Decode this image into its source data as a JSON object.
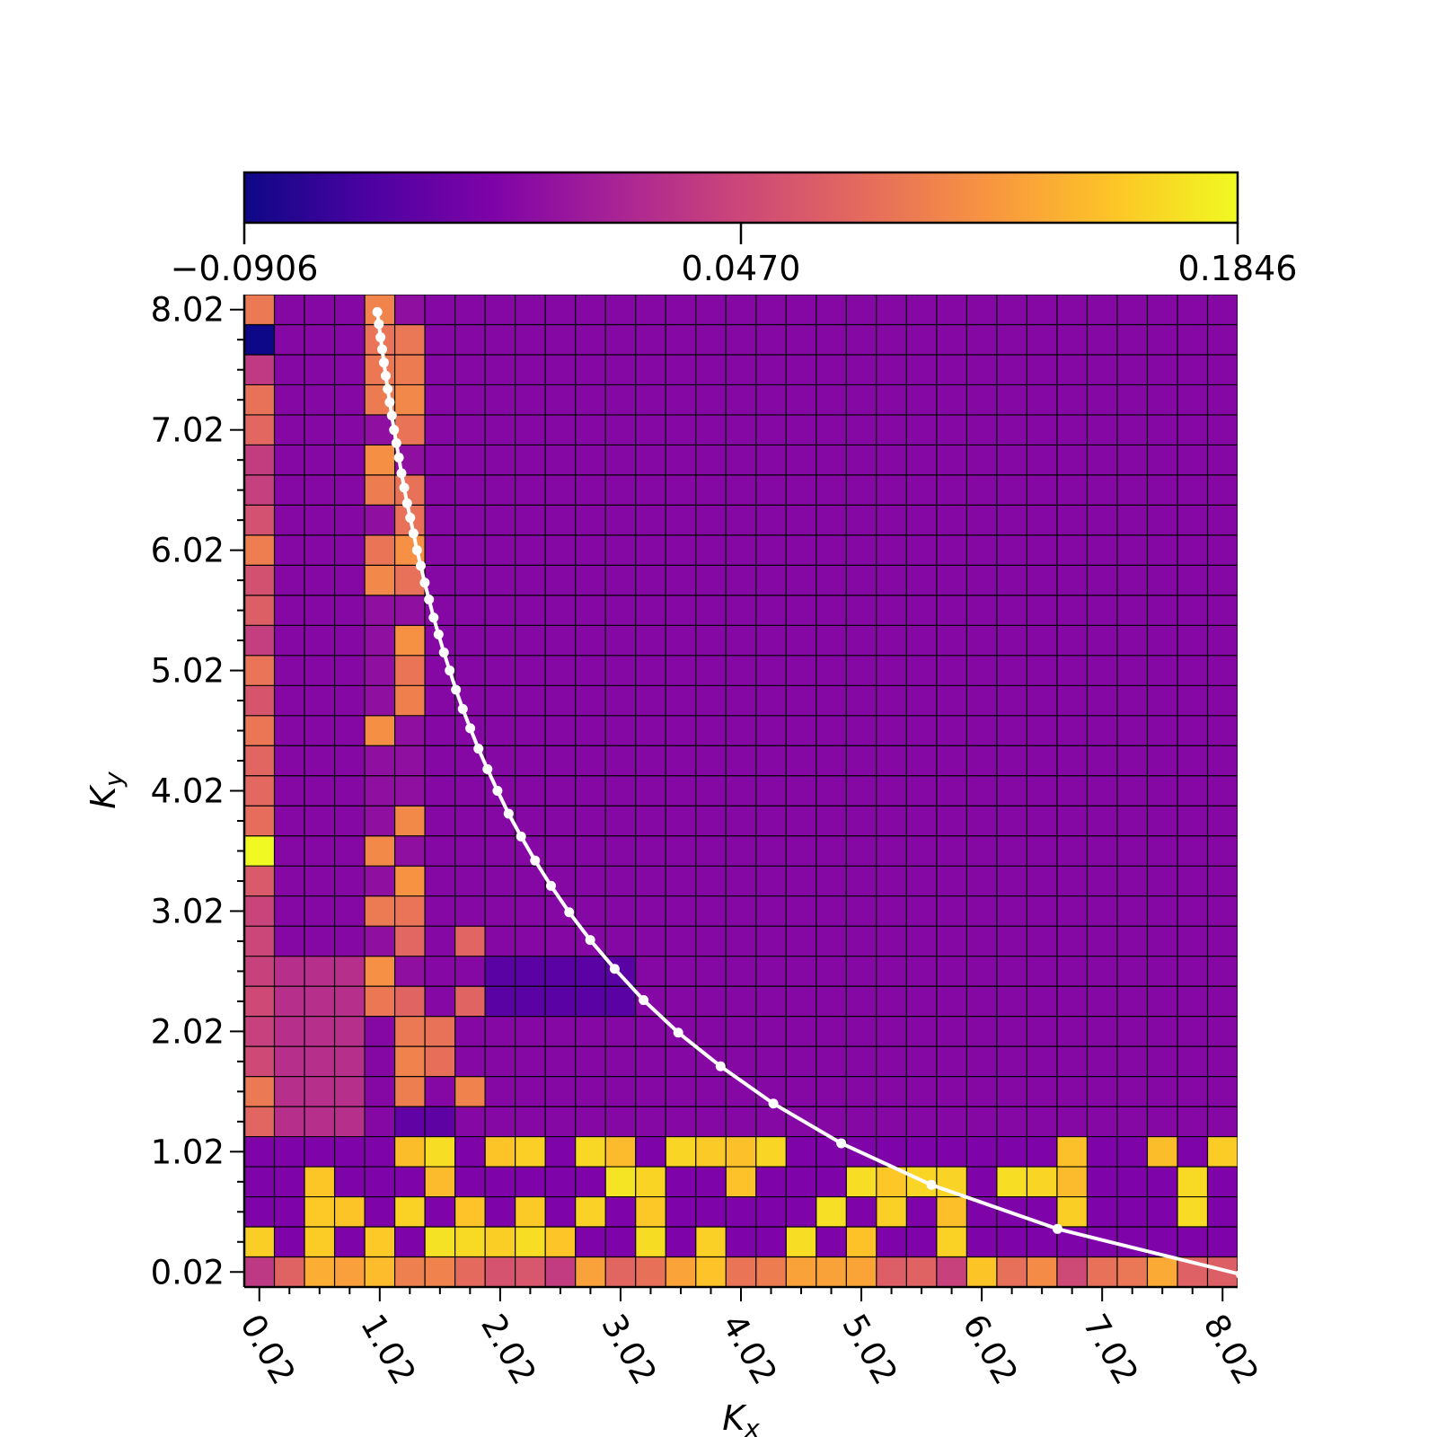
{
  "chart_data": {
    "type": "heatmap",
    "title": "",
    "xlabel": "K_x",
    "ylabel": "K_y",
    "x_tick_labels": [
      "0.02",
      "1.02",
      "2.02",
      "3.02",
      "4.02",
      "5.02",
      "6.02",
      "7.02",
      "8.02"
    ],
    "y_tick_labels": [
      "0.02",
      "1.02",
      "2.02",
      "3.02",
      "4.02",
      "5.02",
      "6.02",
      "7.02",
      "8.02"
    ],
    "xlim": [
      -0.105,
      8.145
    ],
    "ylim": [
      -0.105,
      8.145
    ],
    "grid_step": 0.25,
    "colorbar": {
      "colormap": "plasma",
      "min": -0.0906,
      "max": 0.1846,
      "tick_labels": [
        "−0.0906",
        "0.0470",
        "0.1846"
      ],
      "placement": "top"
    },
    "curve": {
      "description_of_points": "hyperbola Kx*Ky approx 1",
      "x": [
        1.0,
        1.0128,
        1.0263,
        1.0403,
        1.0549,
        1.0701,
        1.0861,
        1.1028,
        1.1204,
        1.1389,
        1.1583,
        1.1788,
        1.2004,
        1.2232,
        1.2474,
        1.2731,
        1.3004,
        1.3295,
        1.3605,
        1.3936,
        1.4292,
        1.4674,
        1.5085,
        1.5528,
        1.6008,
        1.6529,
        1.7097,
        1.7717,
        1.8398,
        1.9148,
        1.9978,
        2.0902,
        2.1936,
        2.3101,
        2.4422,
        2.5934,
        2.7679,
        2.9713,
        3.2114,
        3.4992,
        3.8506,
        4.2893,
        4.8527,
        5.6023,
        6.6491,
        8.1707
      ],
      "y": [
        8.0,
        7.9,
        7.79,
        7.69,
        7.58,
        7.47,
        7.36,
        7.25,
        7.14,
        7.02,
        6.91,
        6.79,
        6.66,
        6.54,
        6.41,
        6.29,
        6.16,
        6.02,
        5.89,
        5.75,
        5.61,
        5.46,
        5.32,
        5.17,
        5.02,
        4.86,
        4.7,
        4.54,
        4.37,
        4.2,
        4.02,
        3.83,
        3.64,
        3.44,
        3.23,
        3.01,
        2.78,
        2.54,
        2.28,
        2.01,
        1.73,
        1.42,
        1.09,
        0.744,
        0.378,
        0.0
      ]
    }
  }
}
